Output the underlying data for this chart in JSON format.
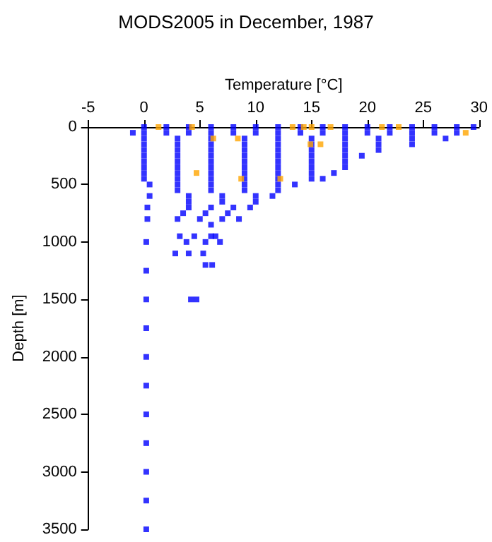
{
  "chart_data": {
    "type": "scatter",
    "title": "MODS2005 in December, 1987",
    "xlabel": "Temperature [°C]",
    "ylabel": "Depth [m]",
    "xlim": [
      -5,
      30
    ],
    "xticks": [
      -5,
      0,
      5,
      10,
      15,
      20,
      25,
      30
    ],
    "ylim": [
      3500,
      0
    ],
    "yticks": [
      0,
      500,
      1000,
      1500,
      2000,
      2500,
      3000,
      3500
    ],
    "grid": false,
    "marker": "square",
    "series": [
      {
        "color": "#0000ff",
        "x": [
          -1,
          0,
          2,
          4,
          6,
          8,
          10,
          12,
          14,
          16,
          18,
          20,
          22,
          24,
          26,
          28,
          29.5,
          0,
          2,
          4,
          6,
          8,
          10,
          12,
          14,
          16,
          18,
          20,
          22,
          24,
          26,
          28,
          0,
          3,
          6,
          9,
          12,
          15,
          18,
          21,
          24,
          27,
          0,
          3,
          6,
          9,
          12,
          15,
          18,
          21,
          24,
          0,
          3,
          6,
          9,
          12,
          15,
          18,
          21,
          0,
          3,
          6,
          9,
          12,
          15,
          18,
          19.5,
          0,
          3,
          6,
          9,
          12,
          15,
          18,
          0,
          3,
          6,
          9,
          12,
          15,
          18,
          0,
          3,
          6,
          9,
          12,
          15,
          17,
          0,
          3,
          6,
          9,
          12,
          15,
          16,
          0.5,
          3,
          6,
          9,
          12,
          13.5,
          3,
          6,
          9,
          12,
          0.5,
          4,
          7,
          10,
          11.5,
          4,
          7,
          10,
          0.3,
          4,
          6,
          8,
          9.5,
          3.5,
          5.5,
          7.5,
          0.3,
          3,
          5,
          7,
          8.5,
          6,
          3.2,
          4.5,
          6,
          6.4,
          0.2,
          3.8,
          5.5,
          6.8,
          2.8,
          4,
          5.3,
          5.5,
          6.1,
          0.2,
          0.2,
          4.2,
          4.7,
          0.2,
          0.2,
          0.2,
          0.2,
          0.2,
          0.2,
          0.2,
          0.2
        ],
        "values": [
          50,
          0,
          0,
          0,
          0,
          0,
          0,
          0,
          0,
          0,
          0,
          0,
          0,
          0,
          0,
          0,
          0,
          50,
          50,
          50,
          50,
          50,
          50,
          50,
          50,
          50,
          50,
          50,
          50,
          50,
          50,
          50,
          100,
          100,
          100,
          100,
          100,
          100,
          100,
          100,
          100,
          100,
          150,
          150,
          150,
          150,
          150,
          150,
          150,
          150,
          150,
          200,
          200,
          200,
          200,
          200,
          200,
          200,
          200,
          250,
          250,
          250,
          250,
          250,
          250,
          250,
          250,
          300,
          300,
          300,
          300,
          300,
          300,
          300,
          350,
          350,
          350,
          350,
          350,
          350,
          350,
          400,
          400,
          400,
          400,
          400,
          400,
          400,
          450,
          450,
          450,
          450,
          450,
          450,
          450,
          500,
          500,
          500,
          500,
          500,
          500,
          550,
          550,
          550,
          550,
          600,
          600,
          600,
          600,
          600,
          650,
          650,
          650,
          700,
          700,
          700,
          700,
          700,
          750,
          750,
          750,
          800,
          800,
          800,
          800,
          800,
          850,
          950,
          950,
          950,
          950,
          1000,
          1000,
          1000,
          1000,
          1100,
          1100,
          1100,
          1200,
          1200,
          1250,
          1500,
          1500,
          1500,
          1750,
          2000,
          2250,
          2500,
          2750,
          3000,
          3250,
          3500
        ]
      },
      {
        "color": "#ffa500",
        "x": [
          1.3,
          4.3,
          6.2,
          8.4,
          4.7,
          8.7,
          12.2,
          13.3,
          14.3,
          15,
          14.9,
          15.8,
          16.7,
          21.3,
          22.8,
          28.8
        ],
        "values": [
          0,
          0,
          100,
          100,
          400,
          450,
          450,
          0,
          0,
          0,
          150,
          150,
          0,
          0,
          0,
          50
        ]
      }
    ]
  }
}
